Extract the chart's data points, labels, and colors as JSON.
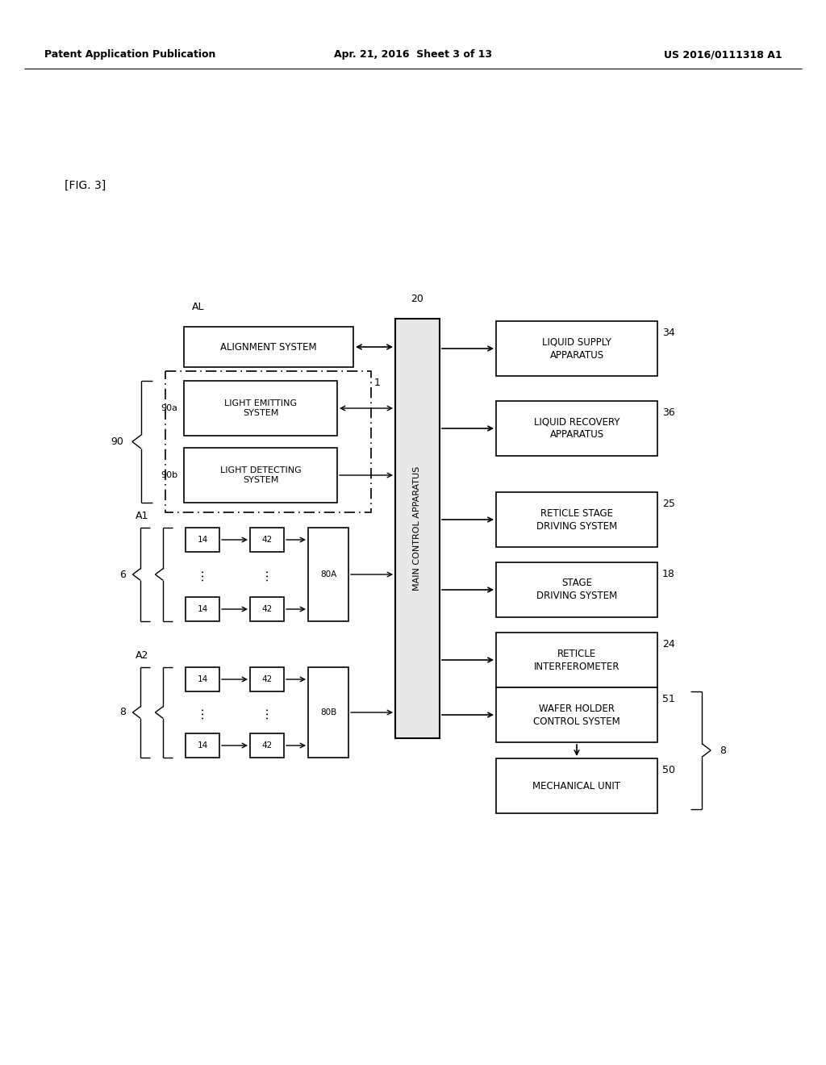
{
  "bg_color": "#ffffff",
  "header_left": "Patent Application Publication",
  "header_mid": "Apr. 21, 2016  Sheet 3 of 13",
  "header_right": "US 2016/0111318 A1",
  "fig_label": "[FIG. 3]",
  "main_ctrl_label": "MAIN CONTROL APPARATUS",
  "main_ctrl_num": "20",
  "alignment_system": "ALIGNMENT SYSTEM",
  "alignment_num": "AL",
  "light_emitting": "LIGHT EMITTING\nSYSTEM",
  "light_detecting": "LIGHT DETECTING\nSYSTEM",
  "label_90": "90",
  "label_90a": "90a",
  "label_90b": "90b",
  "label_1": "1",
  "liquid_supply": "LIQUID SUPPLY\nAPPARATUS",
  "liquid_supply_num": "34",
  "liquid_recovery": "LIQUID RECOVERY\nAPPARATUS",
  "liquid_recovery_num": "36",
  "reticle_stage": "RETICLE STAGE\nDRIVING SYSTEM",
  "reticle_stage_num": "25",
  "stage_driving": "STAGE\nDRIVING SYSTEM",
  "stage_driving_num": "18",
  "reticle_interf": "RETICLE\nINTERFEROMETER",
  "reticle_interf_num": "24",
  "wafer_holder": "WAFER HOLDER\nCONTROL SYSTEM",
  "wafer_holder_num": "51",
  "mechanical_unit": "MECHANICAL UNIT",
  "mechanical_unit_num": "50",
  "label_A1": "A1",
  "label_A2": "A2",
  "label_6": "6",
  "label_8": "8",
  "label_80A": "80A",
  "label_80B": "80B",
  "label_14": "14",
  "label_42": "42"
}
